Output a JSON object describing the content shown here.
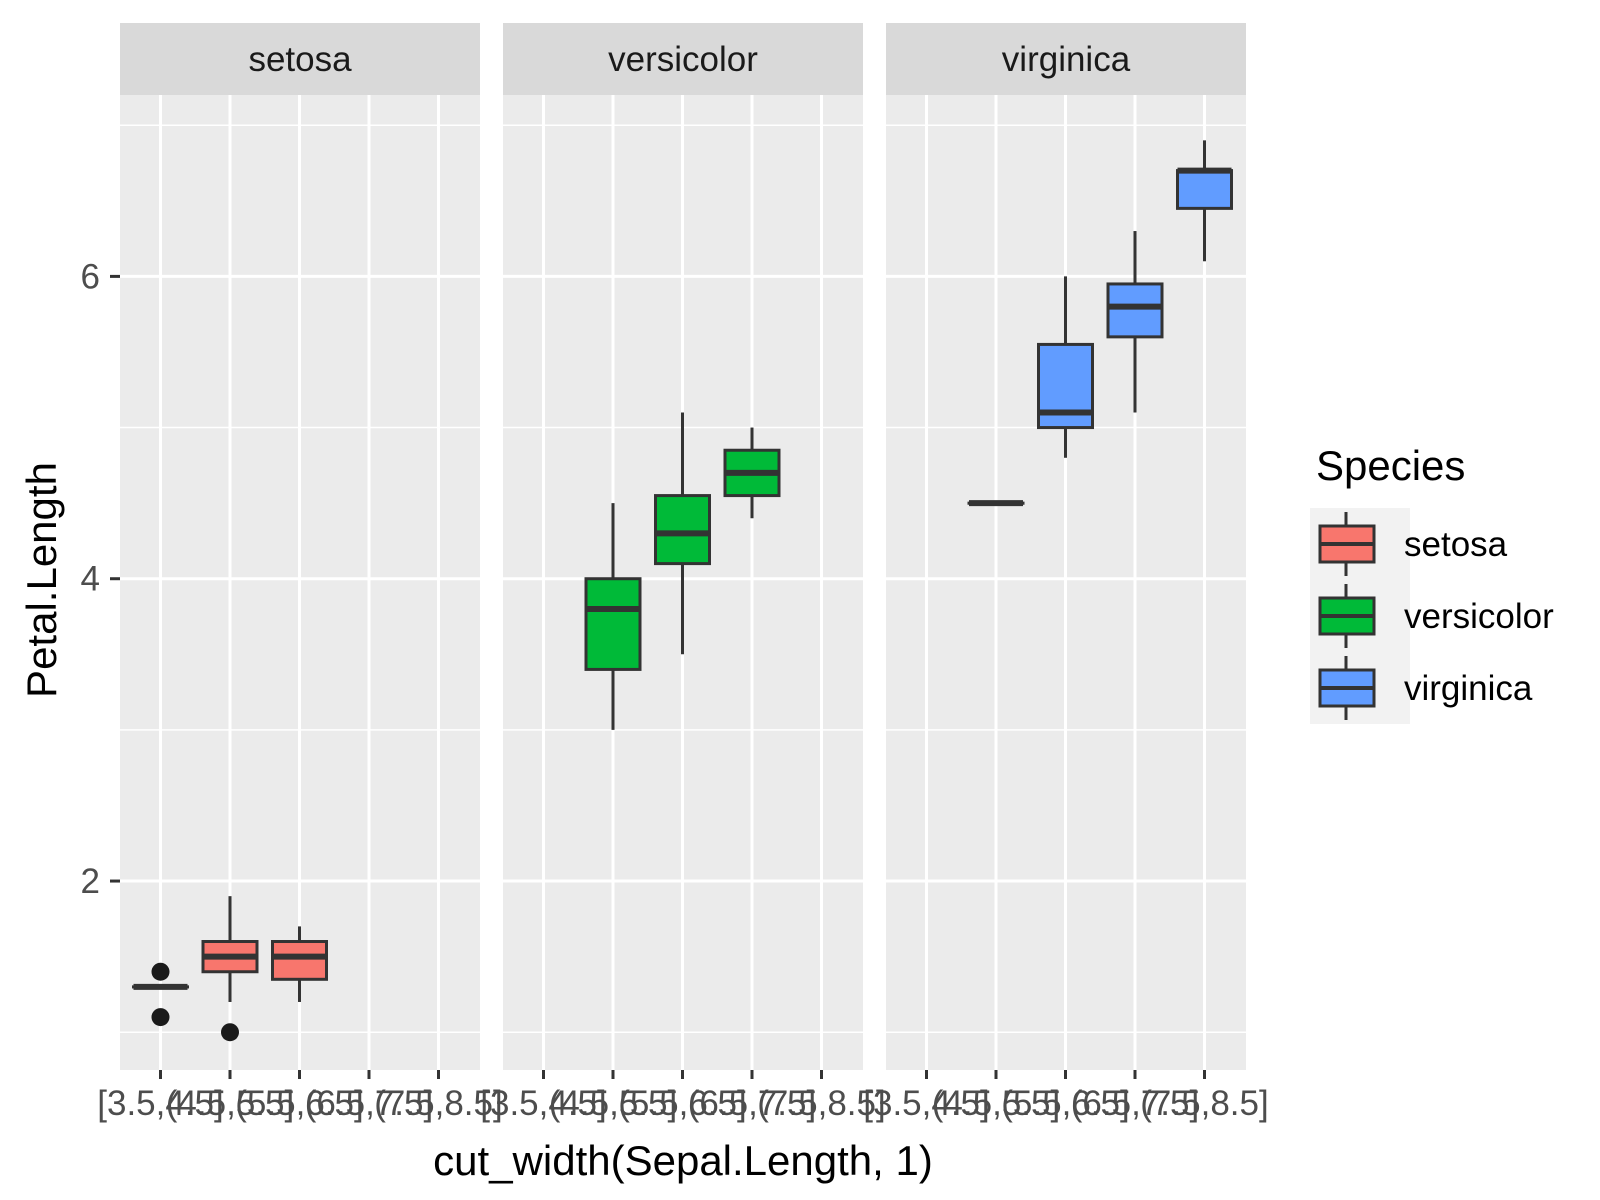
{
  "chart_data": {
    "type": "boxplot",
    "facet_by": "Species",
    "xlabel": "cut_width(Sepal.Length, 1)",
    "ylabel": "Petal.Length",
    "categories": [
      "[3.5,4.5]",
      "(4.5,5.5]",
      "(5.5,6.5]",
      "(6.5,7.5]",
      "(7.5,8.5]"
    ],
    "ylim": [
      0.75,
      7.2
    ],
    "yticks": [
      2,
      4,
      6
    ],
    "grid": true,
    "legend": {
      "title": "Species",
      "position": "right",
      "items": [
        {
          "name": "setosa",
          "color": "#F8766D"
        },
        {
          "name": "versicolor",
          "color": "#00BA38"
        },
        {
          "name": "virginica",
          "color": "#619CFF"
        }
      ]
    },
    "facets": [
      {
        "name": "setosa",
        "color": "#F8766D",
        "boxes": [
          {
            "category": "[3.5,4.5]",
            "lower_whisker": 1.3,
            "q1": 1.3,
            "median": 1.3,
            "q3": 1.3,
            "upper_whisker": 1.3,
            "outliers": [
              1.1,
              1.4
            ]
          },
          {
            "category": "(4.5,5.5]",
            "lower_whisker": 1.2,
            "q1": 1.4,
            "median": 1.5,
            "q3": 1.6,
            "upper_whisker": 1.9,
            "outliers": [
              1.0
            ]
          },
          {
            "category": "(5.5,6.5]",
            "lower_whisker": 1.2,
            "q1": 1.35,
            "median": 1.5,
            "q3": 1.6,
            "upper_whisker": 1.7,
            "outliers": []
          }
        ]
      },
      {
        "name": "versicolor",
        "color": "#00BA38",
        "boxes": [
          {
            "category": "(4.5,5.5]",
            "lower_whisker": 3.0,
            "q1": 3.4,
            "median": 3.8,
            "q3": 4.0,
            "upper_whisker": 4.5,
            "outliers": []
          },
          {
            "category": "(5.5,6.5]",
            "lower_whisker": 3.5,
            "q1": 4.1,
            "median": 4.3,
            "q3": 4.55,
            "upper_whisker": 5.1,
            "outliers": []
          },
          {
            "category": "(6.5,7.5]",
            "lower_whisker": 4.4,
            "q1": 4.55,
            "median": 4.7,
            "q3": 4.85,
            "upper_whisker": 5.0,
            "outliers": []
          }
        ]
      },
      {
        "name": "virginica",
        "color": "#619CFF",
        "boxes": [
          {
            "category": "(4.5,5.5]",
            "lower_whisker": 4.5,
            "q1": 4.5,
            "median": 4.5,
            "q3": 4.5,
            "upper_whisker": 4.5,
            "outliers": []
          },
          {
            "category": "(5.5,6.5]",
            "lower_whisker": 4.8,
            "q1": 5.0,
            "median": 5.1,
            "q3": 5.55,
            "upper_whisker": 6.0,
            "outliers": []
          },
          {
            "category": "(6.5,7.5]",
            "lower_whisker": 5.1,
            "q1": 5.6,
            "median": 5.8,
            "q3": 5.95,
            "upper_whisker": 6.3,
            "outliers": []
          },
          {
            "category": "(7.5,8.5]",
            "lower_whisker": 6.1,
            "q1": 6.45,
            "median": 6.7,
            "q3": 6.7,
            "upper_whisker": 6.9,
            "outliers": []
          }
        ]
      }
    ]
  }
}
